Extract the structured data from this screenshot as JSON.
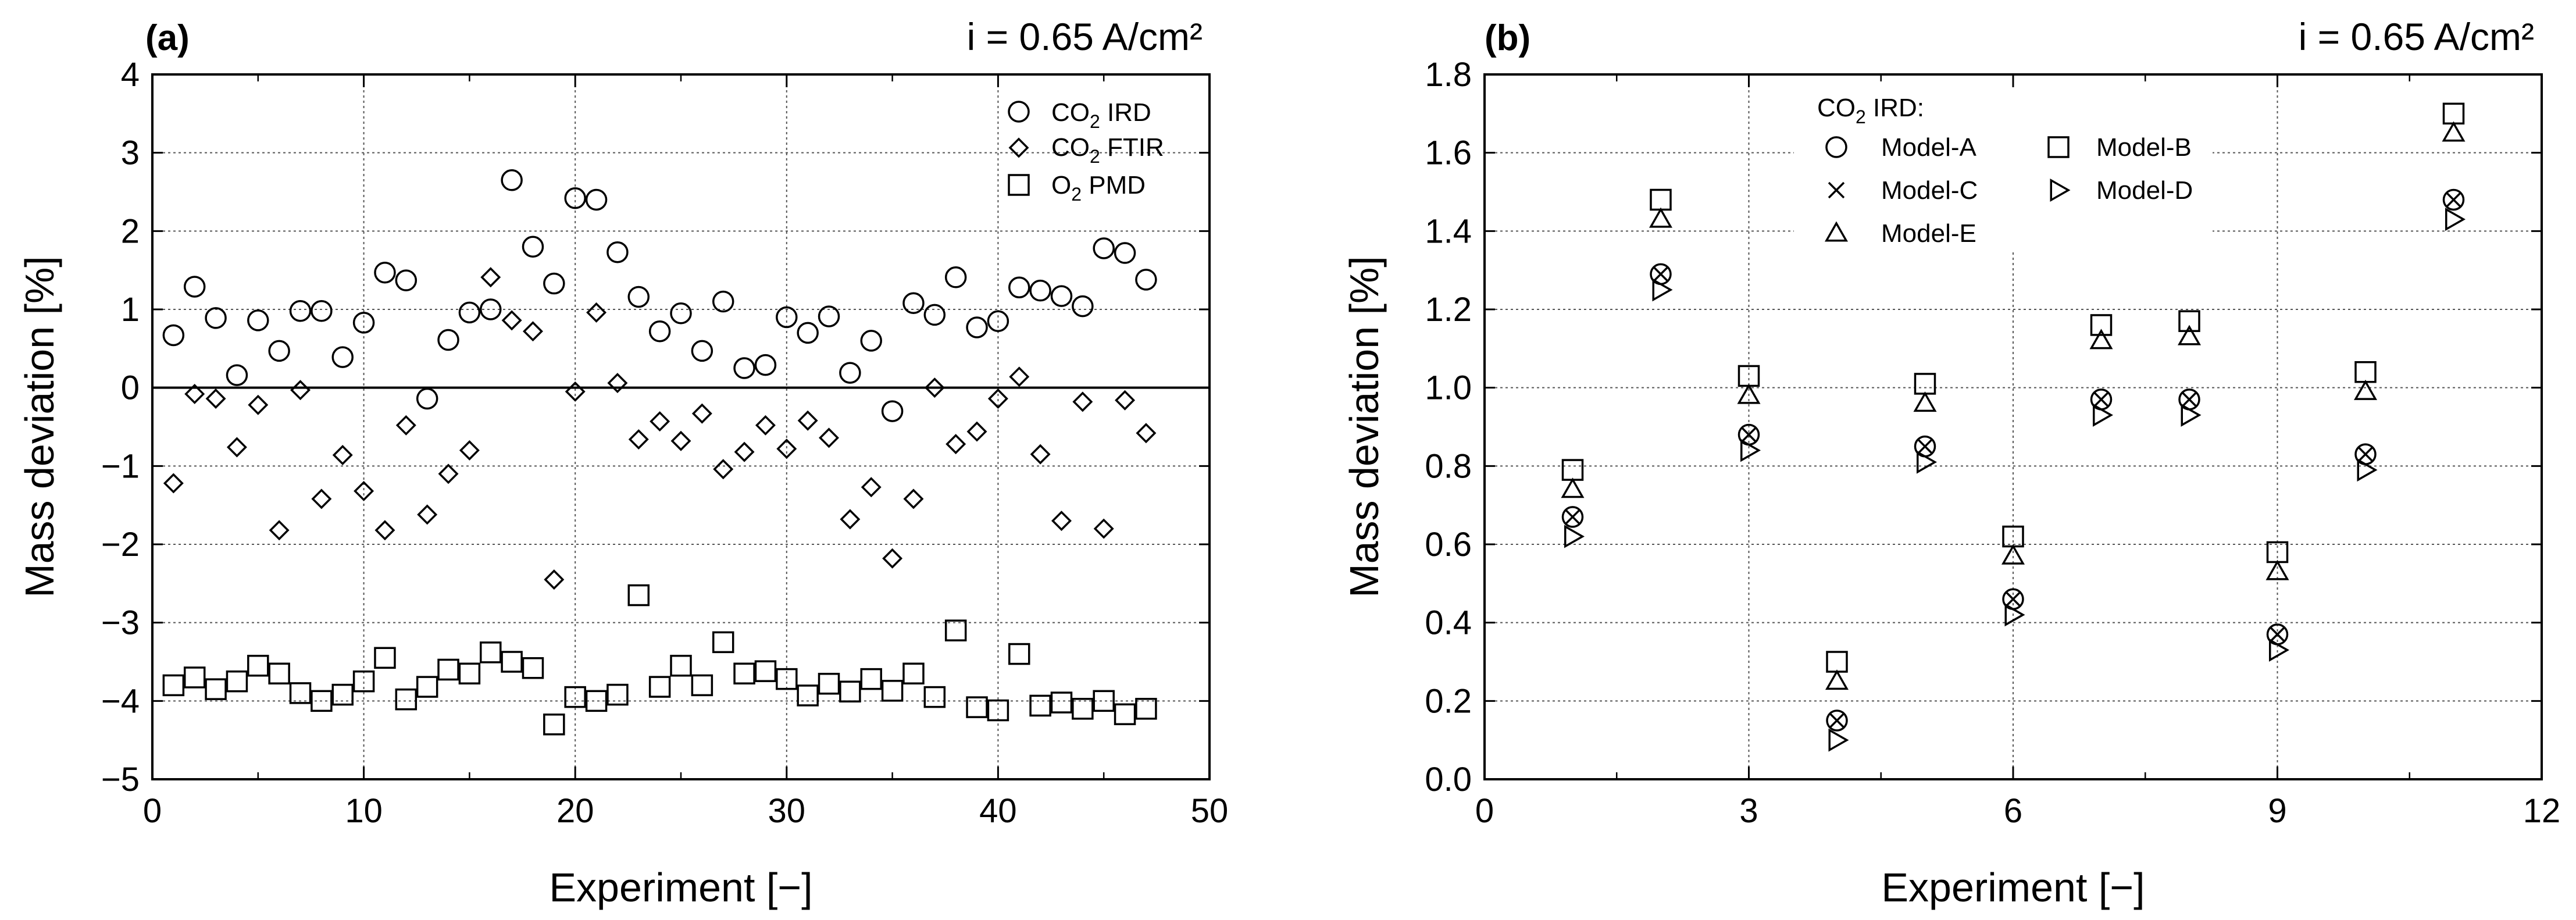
{
  "chart_data": [
    {
      "type": "scatter",
      "panel_label": "(a)",
      "annotation": "i = 0.65 A/cm²",
      "xlabel": "Experiment [−]",
      "ylabel": "Mass deviation [%]",
      "xlim": [
        0,
        50
      ],
      "ylim": [
        -5,
        4
      ],
      "xticks": [
        0,
        10,
        20,
        30,
        40,
        50
      ],
      "yticks": [
        -5,
        -4,
        -3,
        -2,
        -1,
        0,
        1,
        2,
        3,
        4
      ],
      "ytick_labels": [
        "−5",
        "−4",
        "−3",
        "−2",
        "−1",
        "0",
        "1",
        "2",
        "3",
        "4"
      ],
      "grid": "dotted",
      "zero_line": true,
      "legend_position": "top-right",
      "series": [
        {
          "name": "CO2 IRD",
          "name_main": "CO",
          "name_sub": "2",
          "name_tail": " IRD",
          "marker": "circle",
          "x": [
            1,
            2,
            3,
            4,
            5,
            6,
            7,
            8,
            9,
            10,
            11,
            12,
            13,
            14,
            15,
            16,
            17,
            18,
            19,
            20,
            21,
            22,
            23,
            24,
            25,
            26,
            27,
            28,
            29,
            30,
            31,
            32,
            33,
            34,
            35,
            36,
            37,
            38,
            39,
            40,
            41,
            42,
            43,
            44,
            45,
            46,
            47
          ],
          "y": [
            0.67,
            1.29,
            0.89,
            0.16,
            0.86,
            0.47,
            0.98,
            0.98,
            0.39,
            0.83,
            1.47,
            1.37,
            -0.14,
            0.61,
            0.96,
            1.0,
            2.65,
            1.8,
            1.33,
            2.42,
            2.4,
            1.73,
            1.16,
            0.72,
            0.95,
            0.47,
            1.1,
            0.25,
            0.29,
            0.9,
            0.7,
            0.91,
            0.19,
            0.6,
            -0.3,
            1.08,
            0.93,
            1.41,
            0.77,
            0.85,
            1.28,
            1.24,
            1.17,
            1.04,
            1.78,
            1.72,
            1.38
          ]
        },
        {
          "name": "CO2 FTIR",
          "name_main": "CO",
          "name_sub": "2",
          "name_tail": " FTIR",
          "marker": "diamond",
          "x": [
            1,
            2,
            3,
            4,
            5,
            6,
            7,
            8,
            9,
            10,
            11,
            12,
            13,
            14,
            15,
            16,
            17,
            18,
            19,
            20,
            21,
            22,
            23,
            24,
            25,
            26,
            27,
            28,
            29,
            30,
            31,
            32,
            33,
            34,
            35,
            36,
            37,
            38,
            39,
            40,
            41,
            42,
            43,
            44,
            45,
            46,
            47
          ],
          "y": [
            -1.22,
            -0.08,
            -0.14,
            -0.76,
            -0.22,
            -1.82,
            -0.03,
            -1.42,
            -0.86,
            -1.32,
            -1.82,
            -0.48,
            -1.62,
            -1.1,
            -0.8,
            1.41,
            0.86,
            0.72,
            -2.45,
            -0.05,
            0.96,
            0.06,
            -0.66,
            -0.43,
            -0.68,
            -0.33,
            -1.04,
            -0.82,
            -0.48,
            -0.78,
            -0.42,
            -0.64,
            -1.68,
            -1.27,
            -2.18,
            -1.42,
            0.0,
            -0.72,
            -0.56,
            -0.14,
            0.14,
            -0.85,
            -1.7,
            -0.18,
            -1.8,
            -0.16,
            -0.58
          ]
        },
        {
          "name": "O2 PMD",
          "name_main": "O",
          "name_sub": "2",
          "name_tail": " PMD",
          "marker": "square",
          "x": [
            1,
            2,
            3,
            4,
            5,
            6,
            7,
            8,
            9,
            10,
            11,
            12,
            13,
            14,
            15,
            16,
            17,
            18,
            19,
            20,
            21,
            22,
            23,
            24,
            25,
            26,
            27,
            28,
            29,
            30,
            31,
            32,
            33,
            34,
            35,
            36,
            37,
            38,
            39,
            40,
            41,
            42,
            43,
            44,
            45,
            46,
            47
          ],
          "y": [
            -3.8,
            -3.7,
            -3.85,
            -3.75,
            -3.55,
            -3.65,
            -3.9,
            -4.0,
            -3.92,
            -3.75,
            -3.45,
            -3.98,
            -3.82,
            -3.6,
            -3.65,
            -3.38,
            -3.5,
            -3.58,
            -4.3,
            -3.95,
            -4.0,
            -3.92,
            -2.65,
            -3.82,
            -3.55,
            -3.8,
            -3.25,
            -3.65,
            -3.62,
            -3.72,
            -3.93,
            -3.78,
            -3.88,
            -3.72,
            -3.87,
            -3.65,
            -3.95,
            -3.1,
            -4.08,
            -4.12,
            -3.4,
            -4.06,
            -4.02,
            -4.1,
            -4.0,
            -4.17,
            -4.1
          ]
        }
      ]
    },
    {
      "type": "scatter",
      "panel_label": "(b)",
      "annotation": "i = 0.65 A/cm²",
      "xlabel": "Experiment [−]",
      "ylabel": "Mass deviation [%]",
      "xlim": [
        0,
        12
      ],
      "ylim": [
        0,
        1.8
      ],
      "xticks": [
        0,
        3,
        6,
        9,
        12
      ],
      "yticks": [
        0.0,
        0.2,
        0.4,
        0.6,
        0.8,
        1.0,
        1.2,
        1.4,
        1.6,
        1.8
      ],
      "ytick_labels": [
        "0.0",
        "0.2",
        "0.4",
        "0.6",
        "0.8",
        "1.0",
        "1.2",
        "1.4",
        "1.6",
        "1.8"
      ],
      "grid": "dotted",
      "legend_position": "top-center",
      "legend_title_main": "CO",
      "legend_title_sub": "2",
      "legend_title_tail": " IRD:",
      "series": [
        {
          "name": "Model-A",
          "marker": "circle",
          "x": [
            1,
            2,
            3,
            4,
            5,
            6,
            7,
            8,
            9,
            10,
            11
          ],
          "y": [
            0.67,
            1.29,
            0.88,
            0.15,
            0.85,
            0.46,
            0.97,
            0.97,
            0.37,
            0.83,
            1.48
          ]
        },
        {
          "name": "Model-B",
          "marker": "square",
          "x": [
            1,
            2,
            3,
            4,
            5,
            6,
            7,
            8,
            9,
            10,
            11
          ],
          "y": [
            0.79,
            1.48,
            1.03,
            0.3,
            1.01,
            0.62,
            1.16,
            1.17,
            0.58,
            1.04,
            1.7
          ]
        },
        {
          "name": "Model-C",
          "marker": "x",
          "x": [
            1,
            2,
            3,
            4,
            5,
            6,
            7,
            8,
            9,
            10,
            11
          ],
          "y": [
            0.67,
            1.29,
            0.88,
            0.15,
            0.85,
            0.46,
            0.97,
            0.97,
            0.37,
            0.83,
            1.48
          ]
        },
        {
          "name": "Model-D",
          "marker": "triangle-right",
          "x": [
            1,
            2,
            3,
            4,
            5,
            6,
            7,
            8,
            9,
            10,
            11
          ],
          "y": [
            0.62,
            1.25,
            0.84,
            0.1,
            0.81,
            0.42,
            0.93,
            0.93,
            0.33,
            0.79,
            1.43
          ]
        },
        {
          "name": "Model-E",
          "marker": "triangle-up",
          "x": [
            1,
            2,
            3,
            4,
            5,
            6,
            7,
            8,
            9,
            10,
            11
          ],
          "y": [
            0.74,
            1.43,
            0.98,
            0.25,
            0.96,
            0.57,
            1.12,
            1.13,
            0.53,
            0.99,
            1.65
          ]
        }
      ]
    }
  ]
}
